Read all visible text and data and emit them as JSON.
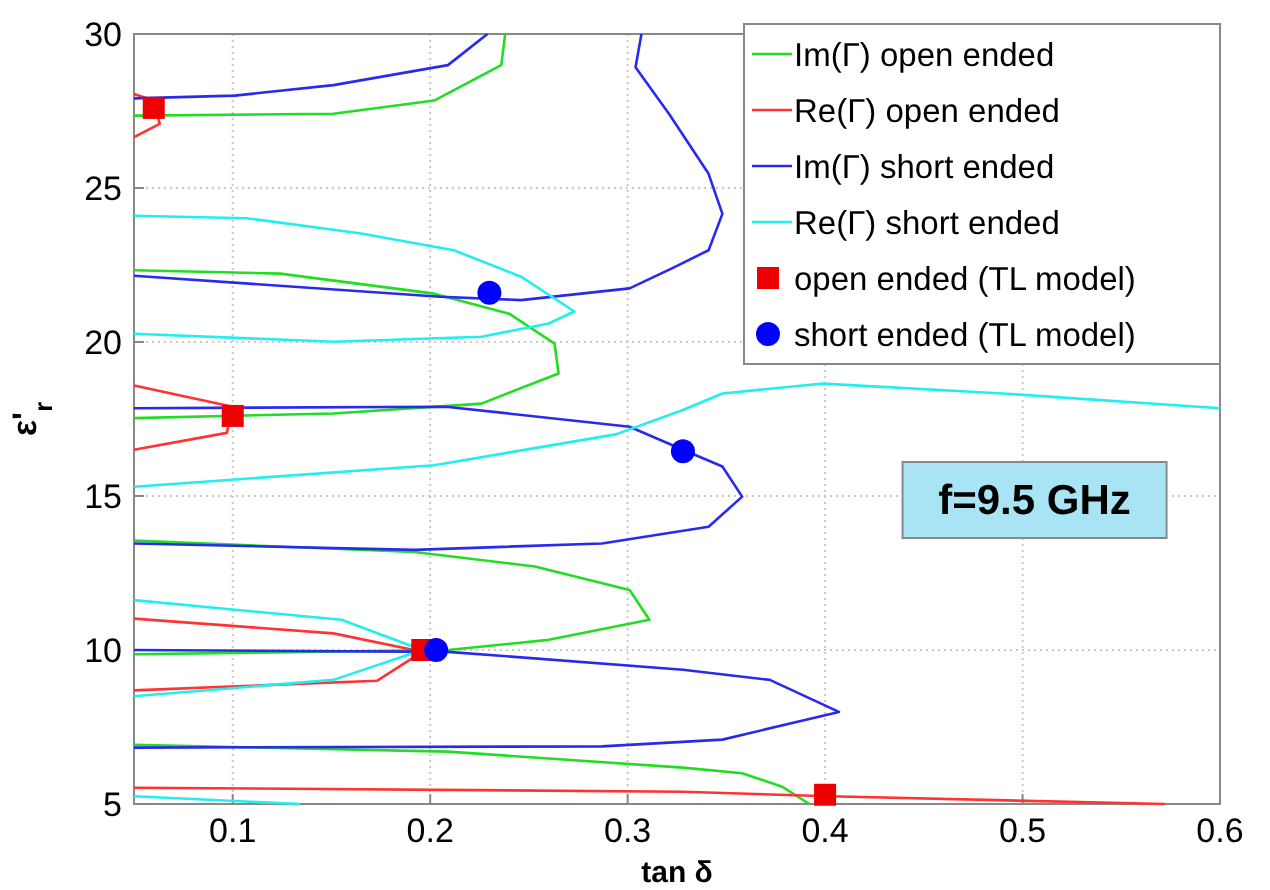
{
  "chart_data": {
    "type": "line",
    "xlabel": "tan δ",
    "ylabel": "ε'$_{r}$",
    "xlim": [
      0.05,
      0.6
    ],
    "ylim": [
      5,
      30
    ],
    "xticks": [
      0.1,
      0.2,
      0.3,
      0.4,
      0.5,
      0.6
    ],
    "yticks": [
      5,
      10,
      15,
      20,
      25,
      30
    ],
    "grid": true,
    "legend": "top right",
    "annotations": [
      "f=9.5 GHz"
    ],
    "series": [
      {
        "name": "Im(Γ) open ended",
        "color": "#22dd22",
        "x": [
          0.05,
          0.151,
          0.202,
          0.236,
          0.238,
          null,
          0.05,
          0.124,
          0.202,
          0.24,
          0.263,
          0.265,
          0.226,
          0.151,
          0.05,
          null,
          0.05,
          0.192,
          0.253,
          0.301,
          0.311,
          0.26,
          0.209,
          0.05,
          null,
          0.05,
          0.209,
          0.328,
          0.358,
          0.378,
          0.392
        ],
        "values": [
          27.35,
          27.41,
          27.84,
          28.99,
          30,
          null,
          22.33,
          22.22,
          21.57,
          20.92,
          19.95,
          18.98,
          18.0,
          17.68,
          17.53,
          null,
          13.55,
          13.18,
          12.71,
          11.95,
          10.98,
          10.33,
          10.0,
          9.86,
          null,
          6.92,
          6.7,
          6.18,
          6.0,
          5.57,
          5.0
        ]
      },
      {
        "name": "Re(Γ) open ended",
        "color": "#ff3333",
        "x": [
          0.05,
          0.06,
          0.063,
          0.05,
          null,
          0.05,
          0.1,
          0.097,
          0.05,
          null,
          0.05,
          0.151,
          0.196,
          0.173,
          0.05,
          null,
          0.05,
          0.328,
          0.402,
          0.572
        ],
        "values": [
          28.05,
          27.84,
          27.08,
          26.65,
          null,
          18.59,
          17.9,
          17.05,
          16.5,
          null,
          11.02,
          10.54,
          9.94,
          9.0,
          8.69,
          null,
          5.53,
          5.4,
          5.25,
          5.0
        ]
      },
      {
        "name": "Im(Γ) short ended",
        "color": "#2a2aee",
        "x": [
          0.05,
          0.101,
          0.151,
          0.209,
          0.229,
          null,
          0.307,
          0.304,
          0.321,
          0.341,
          0.348,
          0.341,
          0.324,
          0.301,
          0.246,
          0.205,
          0.05,
          null,
          0.05,
          0.208,
          0.301,
          0.328,
          0.348,
          0.358,
          0.341,
          0.287,
          0.192,
          0.05,
          null,
          0.05,
          0.209,
          0.328,
          0.372,
          0.407,
          0.348,
          0.287,
          0.05
        ],
        "values": [
          27.91,
          28.0,
          28.34,
          28.99,
          30,
          null,
          30,
          28.92,
          27.4,
          25.46,
          24.16,
          22.98,
          22.44,
          21.74,
          21.36,
          21.47,
          22.15,
          null,
          17.85,
          17.9,
          17.25,
          16.5,
          15.96,
          14.98,
          14.0,
          13.46,
          13.25,
          13.46,
          null,
          10.0,
          9.94,
          9.36,
          9.03,
          7.99,
          7.09,
          6.87,
          6.83
        ]
      },
      {
        "name": "Re(Γ) short ended",
        "color": "#22eeee",
        "x": [
          0.05,
          0.107,
          0.165,
          0.212,
          0.246,
          0.273,
          0.26,
          0.226,
          0.151,
          0.05,
          null,
          0.05,
          0.202,
          0.294,
          0.328,
          0.348,
          0.399,
          0.49,
          0.6,
          null,
          0.05,
          0.155,
          0.196,
          0.151,
          0.05,
          null,
          0.05,
          0.134
        ],
        "values": [
          24.1,
          24.02,
          23.52,
          22.98,
          22.12,
          20.99,
          20.6,
          20.17,
          20.01,
          20.27,
          null,
          15.3,
          16.0,
          17.0,
          17.79,
          18.33,
          18.65,
          18.33,
          17.85,
          null,
          11.62,
          10.98,
          10.0,
          9.03,
          8.5,
          null,
          5.25,
          5.0
        ]
      },
      {
        "name": "open ended (TL model)",
        "type": "scatter",
        "marker": "square",
        "color": "#ee0000",
        "x": [
          0.06,
          0.1,
          0.196,
          0.4
        ],
        "values": [
          27.6,
          17.6,
          10.0,
          5.3
        ]
      },
      {
        "name": "short ended (TL model)",
        "type": "scatter",
        "marker": "circle",
        "color": "#0000ff",
        "x": [
          0.23,
          0.328,
          0.203
        ],
        "values": [
          21.6,
          16.45,
          10.0
        ]
      }
    ]
  }
}
